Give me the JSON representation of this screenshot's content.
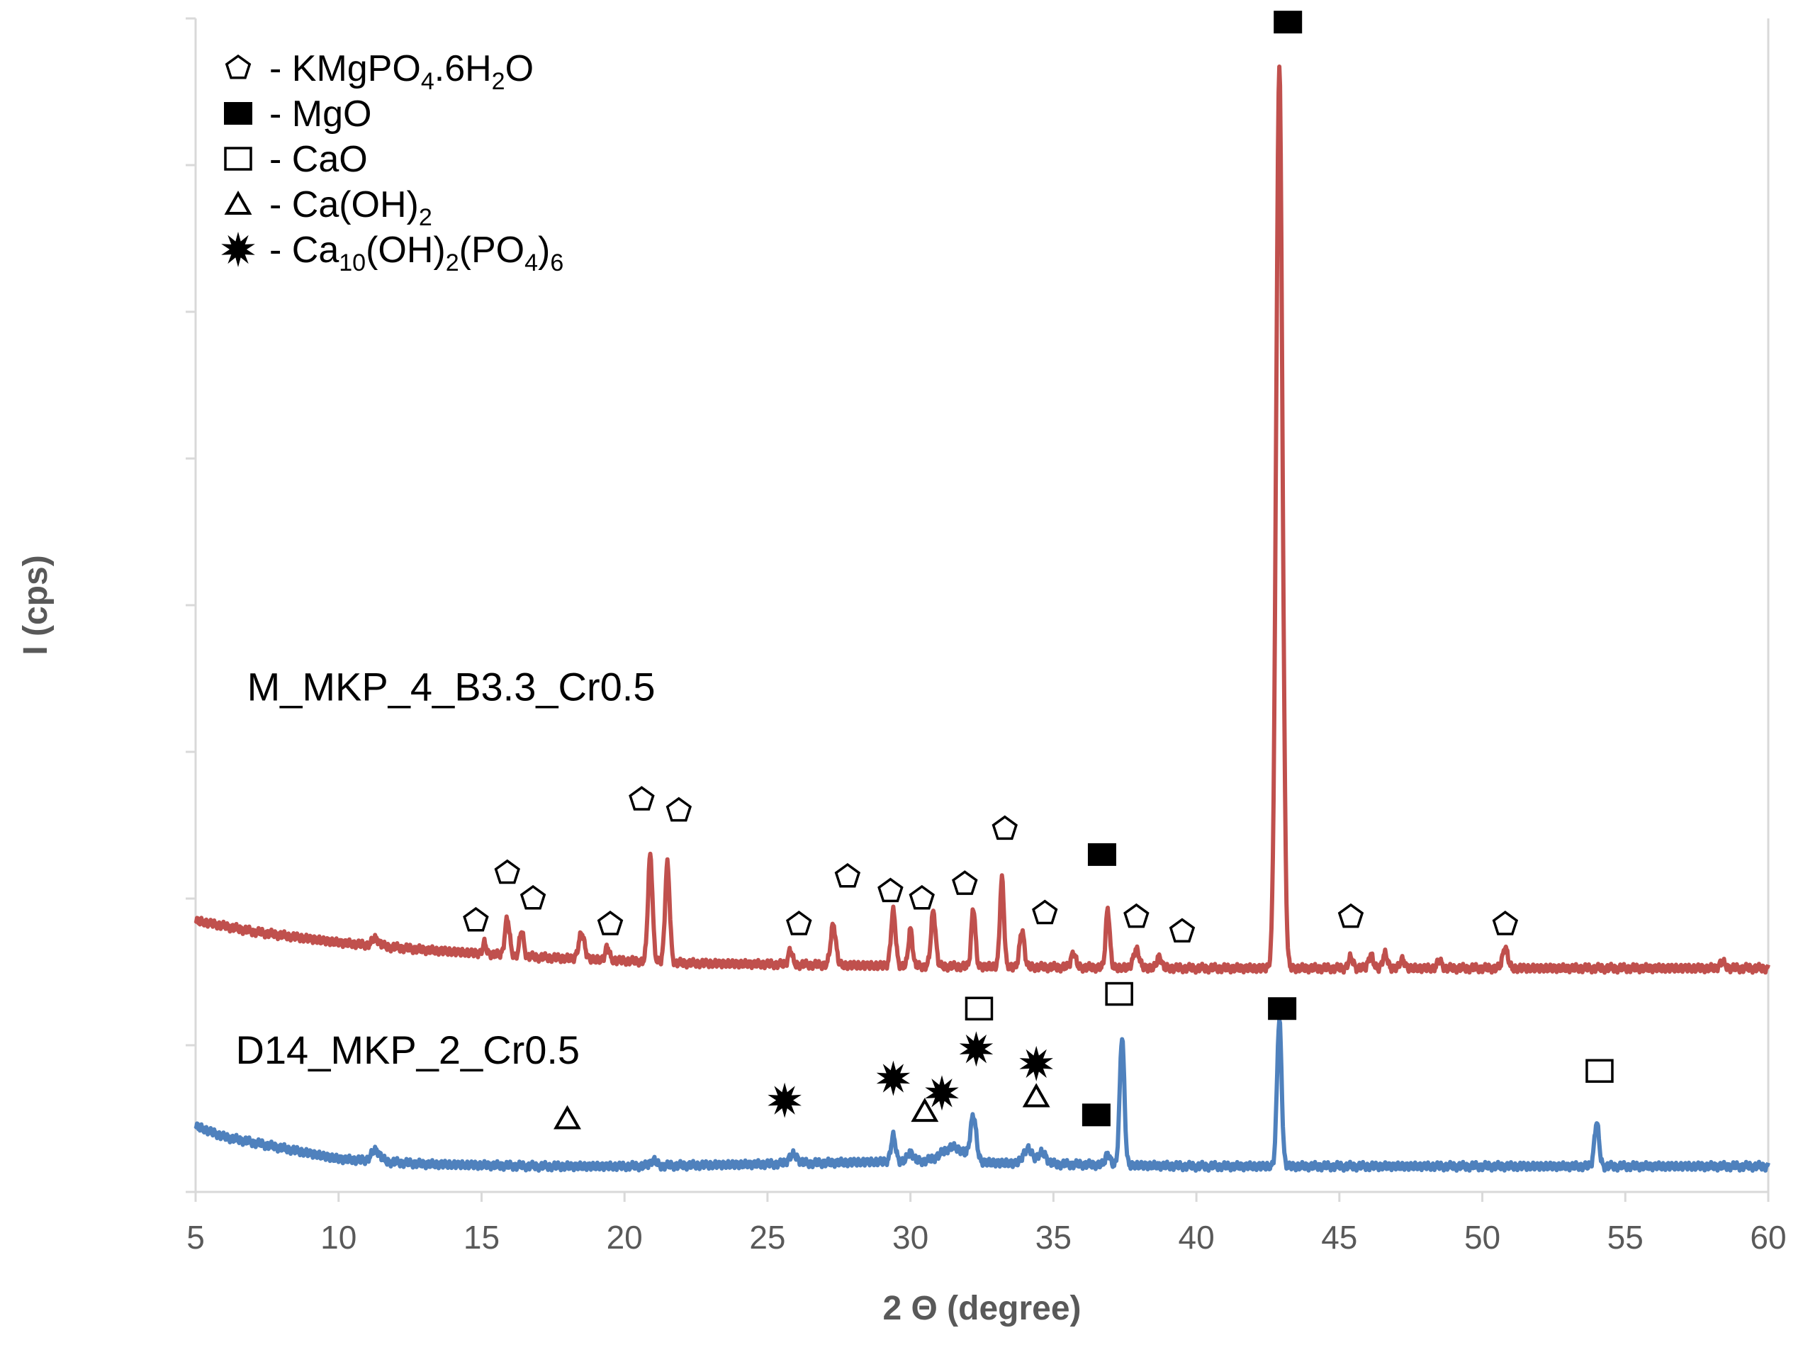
{
  "chart_data": {
    "type": "line",
    "title": "",
    "xlabel": "2 Θ (degree)",
    "ylabel": "I (cps)",
    "xlim": [
      5,
      60
    ],
    "ylim": [
      0,
      16
    ],
    "x_ticks": [
      5,
      10,
      15,
      20,
      25,
      30,
      35,
      40,
      45,
      50,
      55,
      60
    ],
    "y_ticks": [
      0,
      2,
      4,
      6,
      8,
      10,
      12,
      14,
      16
    ],
    "y_tick_labels_shown": false,
    "grid": false,
    "legend_position": "top-left",
    "colors": {
      "axis": "#d9d9d9",
      "tick_label": "#595959",
      "series_red": "#c0504d",
      "series_blue": "#4f81bd",
      "marker": "#000000"
    },
    "legend": [
      {
        "marker": "pentagon",
        "label": "KMgPO4.6H2O",
        "label_prefix": "- KMgPO",
        "sub1": "4",
        "mid": ".6H",
        "sub2": "2",
        "suffix": "O"
      },
      {
        "marker": "filled-square",
        "label": "MgO",
        "label_prefix": "- MgO"
      },
      {
        "marker": "open-square",
        "label": "CaO",
        "label_prefix": "- CaO"
      },
      {
        "marker": "triangle",
        "label": "Ca(OH)2",
        "label_prefix": "- Ca(OH)",
        "sub1": "2"
      },
      {
        "marker": "star",
        "label": "Ca10(OH)2(PO4)6",
        "label_prefix": "- Ca",
        "sub1": "10",
        "mid": "(OH)",
        "sub2": "2",
        "mid2": "(PO",
        "sub3": "4",
        "suffix": ")",
        "sub4": "6"
      }
    ],
    "series": [
      {
        "name": "M_MKP_4_B3.3_Cr0.5",
        "color": "#c0504d",
        "label_x": 6.8,
        "label_y": 6.7,
        "baseline": [
          [
            5,
            3.7
          ],
          [
            7,
            3.55
          ],
          [
            10,
            3.4
          ],
          [
            13,
            3.3
          ],
          [
            17,
            3.2
          ],
          [
            22,
            3.12
          ],
          [
            30,
            3.08
          ],
          [
            40,
            3.05
          ],
          [
            50,
            3.05
          ],
          [
            60,
            3.05
          ]
        ],
        "peaks": [
          [
            11.3,
            0.1,
            0.12
          ],
          [
            15.1,
            0.15,
            0.06
          ],
          [
            15.9,
            0.5,
            0.08
          ],
          [
            16.4,
            0.35,
            0.07
          ],
          [
            18.5,
            0.35,
            0.1
          ],
          [
            19.4,
            0.18,
            0.07
          ],
          [
            20.9,
            1.45,
            0.08
          ],
          [
            21.5,
            1.35,
            0.08
          ],
          [
            25.8,
            0.2,
            0.07
          ],
          [
            27.3,
            0.55,
            0.09
          ],
          [
            29.4,
            0.75,
            0.08
          ],
          [
            30.0,
            0.5,
            0.07
          ],
          [
            30.8,
            0.75,
            0.08
          ],
          [
            32.2,
            0.8,
            0.07
          ],
          [
            33.2,
            1.2,
            0.07
          ],
          [
            33.9,
            0.5,
            0.08
          ],
          [
            35.7,
            0.2,
            0.08
          ],
          [
            36.9,
            0.8,
            0.07
          ],
          [
            37.9,
            0.25,
            0.1
          ],
          [
            38.7,
            0.15,
            0.08
          ],
          [
            42.9,
            12.3,
            0.11
          ],
          [
            45.4,
            0.15,
            0.08
          ],
          [
            46.1,
            0.18,
            0.08
          ],
          [
            46.6,
            0.2,
            0.08
          ],
          [
            47.2,
            0.12,
            0.08
          ],
          [
            48.5,
            0.1,
            0.08
          ],
          [
            50.8,
            0.28,
            0.09
          ],
          [
            58.4,
            0.08,
            0.1
          ]
        ]
      },
      {
        "name": "D14_MKP_2_Cr0.5",
        "color": "#4f81bd",
        "label_x": 6.4,
        "label_y": 1.75,
        "baseline": [
          [
            5,
            0.9
          ],
          [
            6,
            0.75
          ],
          [
            8,
            0.6
          ],
          [
            10,
            0.45
          ],
          [
            13,
            0.38
          ],
          [
            17,
            0.35
          ],
          [
            20,
            0.35
          ],
          [
            25,
            0.38
          ],
          [
            30,
            0.42
          ],
          [
            35,
            0.38
          ],
          [
            40,
            0.35
          ],
          [
            50,
            0.35
          ],
          [
            60,
            0.35
          ]
        ],
        "peaks": [
          [
            11.3,
            0.15,
            0.15
          ],
          [
            21.0,
            0.08,
            0.1
          ],
          [
            25.9,
            0.12,
            0.15
          ],
          [
            29.4,
            0.35,
            0.08
          ],
          [
            30.0,
            0.12,
            0.1
          ],
          [
            31.5,
            0.2,
            0.4
          ],
          [
            32.2,
            0.6,
            0.1
          ],
          [
            34.1,
            0.2,
            0.15
          ],
          [
            34.6,
            0.15,
            0.15
          ],
          [
            36.9,
            0.15,
            0.08
          ],
          [
            37.4,
            1.75,
            0.08
          ],
          [
            42.9,
            2.0,
            0.08
          ],
          [
            54.0,
            0.6,
            0.08
          ]
        ]
      }
    ],
    "annotations": [
      {
        "type": "pentagon",
        "x": 14.8,
        "y": 3.7
      },
      {
        "type": "pentagon",
        "x": 15.9,
        "y": 4.35
      },
      {
        "type": "pentagon",
        "x": 16.8,
        "y": 4.0
      },
      {
        "type": "pentagon",
        "x": 19.5,
        "y": 3.65
      },
      {
        "type": "pentagon",
        "x": 20.6,
        "y": 5.35
      },
      {
        "type": "pentagon",
        "x": 21.9,
        "y": 5.2
      },
      {
        "type": "pentagon",
        "x": 26.1,
        "y": 3.65
      },
      {
        "type": "pentagon",
        "x": 27.8,
        "y": 4.3
      },
      {
        "type": "pentagon",
        "x": 29.3,
        "y": 4.1
      },
      {
        "type": "pentagon",
        "x": 30.4,
        "y": 4.0
      },
      {
        "type": "pentagon",
        "x": 31.9,
        "y": 4.2
      },
      {
        "type": "pentagon",
        "x": 33.3,
        "y": 4.95
      },
      {
        "type": "pentagon",
        "x": 34.7,
        "y": 3.8
      },
      {
        "type": "pentagon",
        "x": 37.9,
        "y": 3.75
      },
      {
        "type": "pentagon",
        "x": 39.5,
        "y": 3.55
      },
      {
        "type": "pentagon",
        "x": 45.4,
        "y": 3.75
      },
      {
        "type": "pentagon",
        "x": 50.8,
        "y": 3.65
      },
      {
        "type": "filled-square",
        "x": 43.2,
        "y": 15.95
      },
      {
        "type": "filled-square",
        "x": 36.7,
        "y": 4.6
      },
      {
        "type": "filled-square",
        "x": 43.0,
        "y": 2.5
      },
      {
        "type": "filled-square",
        "x": 36.5,
        "y": 1.05
      },
      {
        "type": "open-square",
        "x": 32.4,
        "y": 2.5
      },
      {
        "type": "open-square",
        "x": 37.3,
        "y": 2.7
      },
      {
        "type": "open-square",
        "x": 54.1,
        "y": 1.65
      },
      {
        "type": "triangle",
        "x": 18.0,
        "y": 1.0
      },
      {
        "type": "triangle",
        "x": 30.5,
        "y": 1.1
      },
      {
        "type": "triangle",
        "x": 34.4,
        "y": 1.3
      },
      {
        "type": "star",
        "x": 25.6,
        "y": 1.25
      },
      {
        "type": "star",
        "x": 29.4,
        "y": 1.55
      },
      {
        "type": "star",
        "x": 31.1,
        "y": 1.35
      },
      {
        "type": "star",
        "x": 32.3,
        "y": 1.95
      },
      {
        "type": "star",
        "x": 34.4,
        "y": 1.75
      }
    ]
  }
}
